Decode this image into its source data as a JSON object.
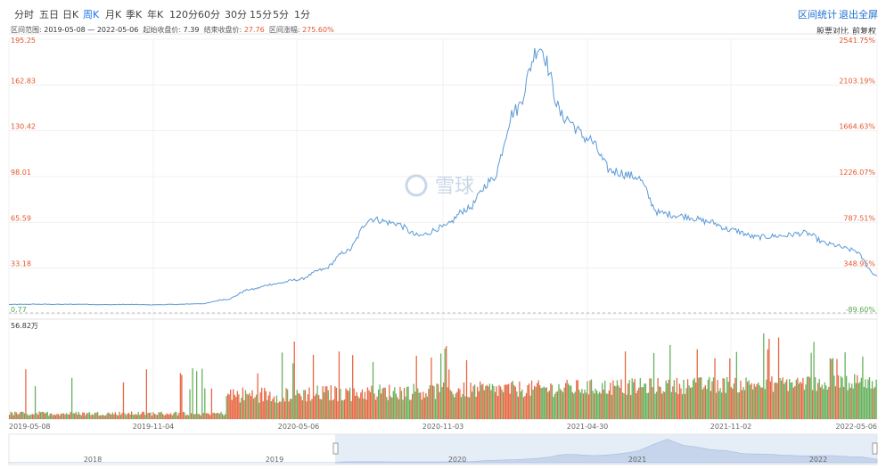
{
  "toolbar": {
    "tabs": [
      "分时",
      "五日",
      "日K",
      "周K",
      "月K",
      "季K",
      "年K",
      "120分",
      "60分",
      "30分",
      "15分",
      "5分",
      "1分"
    ],
    "active_index": 3,
    "range_stats": "区间统计",
    "exit_fullscreen": "退出全屏"
  },
  "info": {
    "range_label": "区间范围:",
    "range_value": "2019-05-08 — 2022-05-06",
    "start_label": "起始收盘价:",
    "start_value": "7.39",
    "end_label": "结束收盘价:",
    "end_value": "27.76",
    "change_label": "区间涨幅:",
    "change_value": "275.60%",
    "compare": "股票对比",
    "adjust": "前复权"
  },
  "watermark": "雪球",
  "colors": {
    "line": "#5b9ad6",
    "up": "#e4572e",
    "down": "#55a84a",
    "accent": "#1f6fd1"
  },
  "chart_data": {
    "type": "line",
    "title": "",
    "y_left_ticks": [
      "195.25",
      "162.83",
      "130.42",
      "98.01",
      "65.59",
      "33.18",
      "0.77"
    ],
    "y_right_ticks": [
      "2541.75%",
      "2103.19%",
      "1664.63%",
      "1226.07%",
      "787.51%",
      "348.95%",
      "-89.60%"
    ],
    "ylim": [
      0.77,
      195.25
    ],
    "volume_max_label": "56.82万",
    "x_tick_labels": [
      "2019-05-08",
      "2019-11-04",
      "2020-05-06",
      "2020-11-03",
      "2021-04-30",
      "2021-11-02",
      "2022-05-06"
    ],
    "series": [
      {
        "x": [
          "2019-05",
          "2019-06",
          "2019-07",
          "2019-08",
          "2019-09",
          "2019-10",
          "2019-11",
          "2019-12",
          "2020-01",
          "2020-02",
          "2020-03",
          "2020-04",
          "2020-05",
          "2020-06",
          "2020-07",
          "2020-08",
          "2020-09",
          "2020-10",
          "2020-11",
          "2020-12",
          "2021-01",
          "2021-02",
          "2021-03",
          "2021-04",
          "2021-05",
          "2021-06",
          "2021-07",
          "2021-08",
          "2021-09",
          "2021-10",
          "2021-11",
          "2021-12",
          "2022-01",
          "2022-02",
          "2022-03",
          "2022-04",
          "2022-05"
        ],
        "values": [
          7.4,
          7.6,
          7.5,
          7.6,
          7.3,
          7.4,
          7.2,
          7.5,
          8,
          11,
          18,
          22,
          25,
          32,
          45,
          68,
          65,
          56,
          62,
          75,
          95,
          145,
          190,
          140,
          125,
          102,
          98,
          72,
          70,
          66,
          60,
          55,
          56,
          58,
          50,
          46,
          28
        ]
      }
    ],
    "navigator_labels": [
      "2018",
      "2019",
      "2020",
      "2021",
      "2022"
    ]
  }
}
